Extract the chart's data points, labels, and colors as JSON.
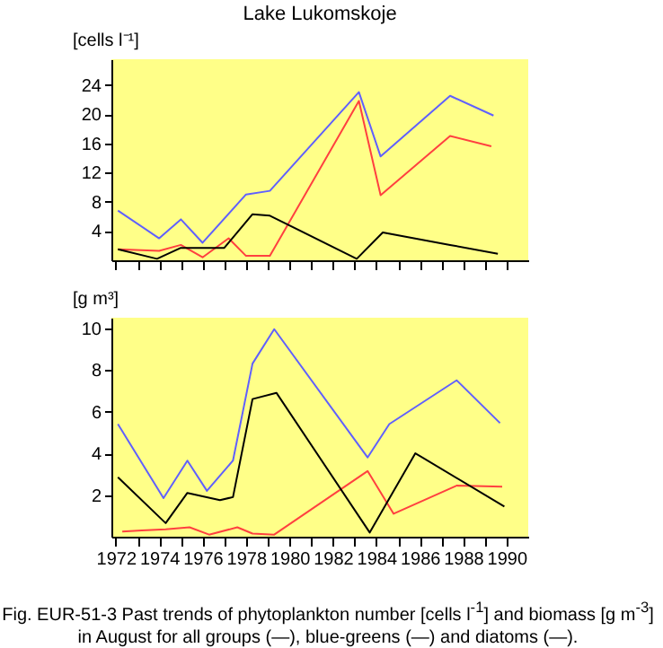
{
  "chart_data": [
    {
      "type": "line",
      "title": "Lake Lukomskoje",
      "ylabel": "[cells l⁻¹]",
      "xlim": [
        1971.8,
        1991
      ],
      "ylim": [
        0,
        27.5
      ],
      "yticks": [
        4,
        8,
        12,
        16,
        20,
        24
      ],
      "xticks": [
        {
          "value": 1972,
          "label": null
        },
        {
          "value": 1973,
          "label": null
        },
        {
          "value": 1974,
          "label": null
        },
        {
          "value": 1975,
          "label": null
        },
        {
          "value": 1976,
          "label": null
        },
        {
          "value": 1977,
          "label": null
        },
        {
          "value": 1978,
          "label": null
        },
        {
          "value": 1979,
          "label": null
        },
        {
          "value": 1980,
          "label": null
        },
        {
          "value": 1981,
          "label": null
        },
        {
          "value": 1982,
          "label": null
        },
        {
          "value": 1983,
          "label": null
        },
        {
          "value": 1984,
          "label": null
        },
        {
          "value": 1985,
          "label": null
        },
        {
          "value": 1986,
          "label": null
        },
        {
          "value": 1987,
          "label": null
        },
        {
          "value": 1988,
          "label": null
        },
        {
          "value": 1989,
          "label": null
        },
        {
          "value": 1990,
          "label": null
        }
      ],
      "tick_labels": "y",
      "grid": false,
      "legend": false,
      "series": [
        {
          "color": "#6060ff",
          "x": [
            1972.1,
            1974,
            1975,
            1976,
            1978,
            1979.1,
            1983.2,
            1984.2,
            1987.4,
            1989.4
          ],
          "values": [
            6.8,
            3.0,
            5.6,
            2.4,
            9.0,
            9.5,
            23.0,
            14.2,
            22.5,
            19.8
          ]
        },
        {
          "color": "#ff4040",
          "x": [
            1972.1,
            1974,
            1975,
            1976,
            1977.2,
            1978,
            1979.1,
            1983.2,
            1984.2,
            1987.4,
            1989.3
          ],
          "values": [
            1.5,
            1.3,
            2.1,
            0.4,
            3.0,
            0.6,
            0.6,
            21.8,
            8.9,
            17.0,
            15.6
          ]
        },
        {
          "color": "#000000",
          "x": [
            1972.1,
            1973.9,
            1975,
            1977,
            1978.3,
            1979.1,
            1983.1,
            1984.3,
            1987.4,
            1989.6
          ],
          "values": [
            1.5,
            0.2,
            1.7,
            1.7,
            6.3,
            6.1,
            0.2,
            3.8,
            2.1,
            0.9
          ]
        }
      ]
    },
    {
      "type": "line",
      "ylabel": "[g m³]",
      "xlim": [
        1971.8,
        1991
      ],
      "ylim": [
        0,
        10.5
      ],
      "yticks": [
        2,
        4,
        6,
        8,
        10
      ],
      "xticks": [
        1972,
        {
          "value": 1973,
          "label": null
        },
        1974,
        {
          "value": 1975,
          "label": null
        },
        1976,
        {
          "value": 1977,
          "label": null
        },
        1978,
        {
          "value": 1979,
          "label": null
        },
        1980,
        {
          "value": 1981,
          "label": null
        },
        1982,
        {
          "value": 1983,
          "label": null
        },
        1984,
        {
          "value": 1985,
          "label": null
        },
        1986,
        {
          "value": 1987,
          "label": null
        },
        1988,
        {
          "value": 1989,
          "label": null
        },
        1990
      ],
      "grid": false,
      "legend": false,
      "annotations": [
        "Fig. EUR-51-3 Past trends of phytoplankton number [cells l$^{-1}$] and biomass [g m$^{-3}$] in August for all groups (—), blue-greens (—) and diatoms (—)."
      ],
      "series": [
        {
          "color": "#6060ff",
          "x": [
            1972.1,
            1974.2,
            1975.3,
            1976.2,
            1977.4,
            1978.3,
            1979.3,
            1983.6,
            1984.6,
            1987.7,
            1989.7
          ],
          "values": [
            5.4,
            1.85,
            3.65,
            2.2,
            3.65,
            8.3,
            9.95,
            3.8,
            5.4,
            7.5,
            5.45
          ]
        },
        {
          "color": "#ff4040",
          "x": [
            1972.3,
            1973.2,
            1974.3,
            1975.4,
            1976.3,
            1977.6,
            1978.3,
            1979.3,
            1983.6,
            1984.8,
            1987.7,
            1989.8
          ],
          "values": [
            0.25,
            0.3,
            0.35,
            0.45,
            0.1,
            0.45,
            0.15,
            0.1,
            3.15,
            1.1,
            2.45,
            2.4
          ]
        },
        {
          "color": "#000000",
          "x": [
            1972.1,
            1974.3,
            1975.3,
            1976.8,
            1977.4,
            1978.3,
            1979.4,
            1983.7,
            1985.8,
            1989.9
          ],
          "values": [
            2.85,
            0.65,
            2.1,
            1.75,
            1.9,
            6.6,
            6.9,
            0.2,
            4.0,
            1.45
          ]
        }
      ]
    }
  ]
}
